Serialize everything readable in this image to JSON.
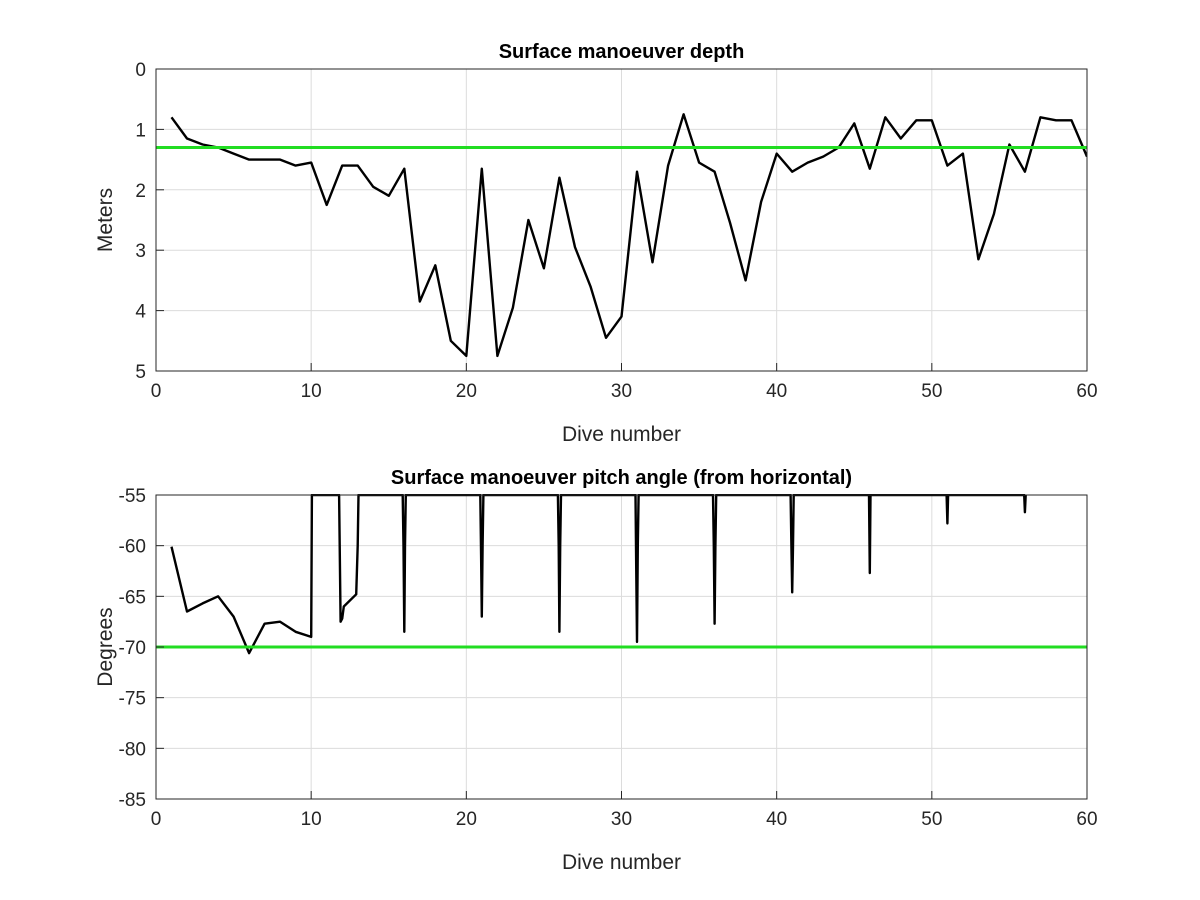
{
  "chart_data": [
    {
      "type": "line",
      "title": "Surface manoeuver depth",
      "xlabel": "Dive number",
      "ylabel": "Meters",
      "xlim": [
        0,
        60
      ],
      "ylim": [
        0,
        5
      ],
      "y_reversed": true,
      "xticks": [
        "0",
        "10",
        "20",
        "30",
        "40",
        "50",
        "60"
      ],
      "yticks": [
        "0",
        "1",
        "2",
        "3",
        "4",
        "5"
      ],
      "grid": true,
      "series": [
        {
          "color": "#000000",
          "x": [
            1,
            2,
            3,
            4,
            5,
            6,
            7,
            8,
            9,
            10,
            11,
            12,
            13,
            14,
            15,
            16,
            17,
            18,
            19,
            20,
            21,
            22,
            23,
            24,
            25,
            26,
            27,
            28,
            29,
            30,
            31,
            32,
            33,
            34,
            35,
            36,
            37,
            38,
            39,
            40,
            41,
            42,
            43,
            44,
            45,
            46,
            47,
            48,
            49,
            50,
            51,
            52,
            53,
            54,
            55,
            56,
            57,
            58,
            59,
            60
          ],
          "y": [
            0.8,
            1.15,
            1.25,
            1.3,
            1.4,
            1.5,
            1.5,
            1.5,
            1.6,
            1.55,
            2.25,
            1.6,
            1.6,
            1.95,
            2.1,
            1.65,
            3.85,
            3.25,
            4.5,
            4.75,
            1.65,
            4.75,
            3.95,
            2.5,
            3.3,
            1.8,
            2.95,
            3.6,
            4.45,
            4.1,
            1.7,
            3.2,
            1.6,
            0.75,
            1.55,
            1.7,
            2.55,
            3.5,
            2.2,
            1.4,
            1.7,
            1.55,
            1.45,
            1.3,
            0.9,
            1.65,
            0.8,
            1.15,
            0.85,
            0.85,
            1.6,
            1.4,
            3.15,
            2.4,
            1.25,
            1.7,
            0.8,
            0.85,
            0.85,
            1.45
          ]
        },
        {
          "color": "#22dd22",
          "x": [
            0,
            60
          ],
          "y": [
            1.3,
            1.3
          ]
        }
      ]
    },
    {
      "type": "line",
      "title": "Surface manoeuver pitch angle (from horizontal)",
      "xlabel": "Dive number",
      "ylabel": "Degrees",
      "xlim": [
        0,
        60
      ],
      "ylim": [
        -85,
        -55
      ],
      "xticks": [
        "0",
        "10",
        "20",
        "30",
        "40",
        "50",
        "60"
      ],
      "yticks": [
        "-55",
        "-60",
        "-65",
        "-70",
        "-75",
        "-80",
        "-85"
      ],
      "grid": true,
      "series": [
        {
          "color": "#000000",
          "x": [
            1,
            2,
            3,
            4,
            5,
            6,
            7,
            8,
            9,
            10,
            10.05,
            10.1,
            11.8,
            11.9,
            12.0,
            12.1,
            12.9,
            13.0,
            13.05,
            15.9,
            15.95,
            16.0,
            16.05,
            16.1,
            20.9,
            20.95,
            21.0,
            21.05,
            21.1,
            25.9,
            25.95,
            26.0,
            26.05,
            26.1,
            30.9,
            30.95,
            31.0,
            31.05,
            31.1,
            35.9,
            35.95,
            36.0,
            36.05,
            36.1,
            40.9,
            40.95,
            41.0,
            41.05,
            41.1,
            45.95,
            46.0,
            46.05,
            50.95,
            51.0,
            51.05,
            55.95,
            56.0,
            56.05
          ],
          "y": [
            -60.1,
            -66.5,
            -65.7,
            -65,
            -67,
            -70.6,
            -67.7,
            -67.5,
            -68.5,
            -69,
            -55,
            -55,
            -55,
            -67.5,
            -67.2,
            -66,
            -64.8,
            -60,
            -55,
            -55,
            -60,
            -68.5,
            -60,
            -55,
            -55,
            -61,
            -67,
            -60,
            -55,
            -55,
            -60,
            -68.5,
            -60,
            -55,
            -55,
            -62,
            -69.5,
            -60,
            -55,
            -55,
            -60,
            -67.7,
            -60,
            -55,
            -55,
            -60,
            -64.6,
            -60,
            -55,
            -55,
            -62.7,
            -55,
            -55,
            -57.8,
            -55,
            -55,
            -56.7,
            -55
          ]
        },
        {
          "color": "#22dd22",
          "x": [
            0,
            60
          ],
          "y": [
            -70,
            -70
          ]
        }
      ]
    }
  ]
}
